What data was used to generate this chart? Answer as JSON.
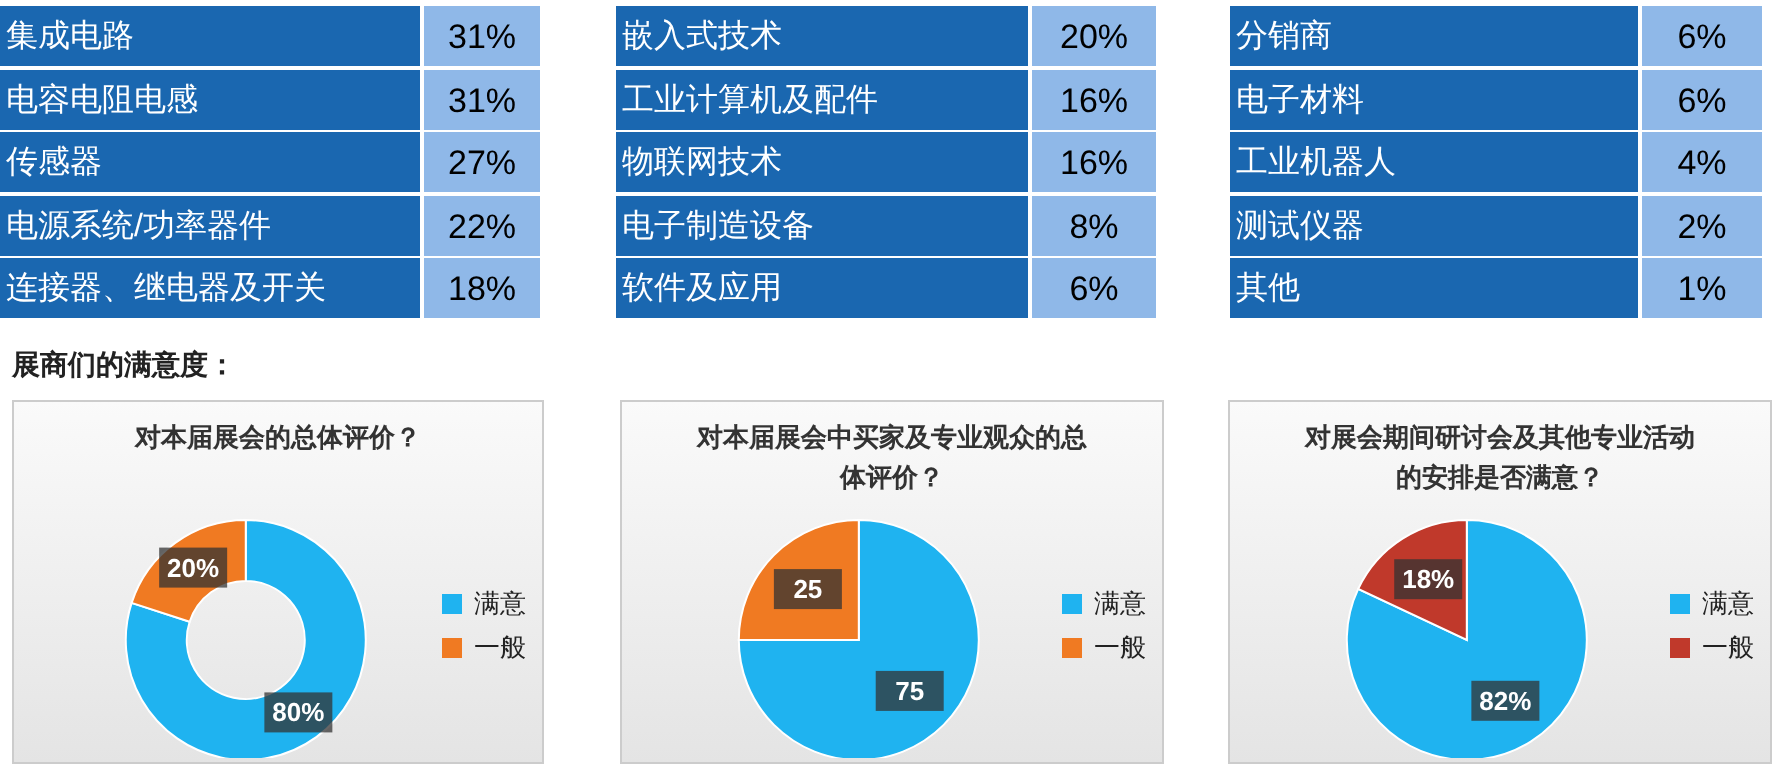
{
  "chart_data": [
    {
      "type": "other",
      "categories": [
        "集成电路",
        "电容电阻电感",
        "传感器",
        "电源系统/功率器件",
        "连接器、继电器及开关"
      ],
      "value_labels": [
        "31%",
        "31%",
        "27%",
        "22%",
        "18%"
      ]
    },
    {
      "type": "other",
      "categories": [
        "嵌入式技术",
        "工业计算机及配件",
        "物联网技术",
        "电子制造设备",
        "软件及应用"
      ],
      "value_labels": [
        "20%",
        "16%",
        "16%",
        "8%",
        "6%"
      ]
    },
    {
      "type": "other",
      "categories": [
        "分销商",
        "电子材料",
        "工业机器人",
        "测试仪器",
        "其他"
      ],
      "value_labels": [
        "6%",
        "6%",
        "4%",
        "2%",
        "1%"
      ]
    },
    {
      "type": "other",
      "title": "展商们的满意度："
    },
    {
      "type": "donut",
      "title": "对本届展会的总体评价？",
      "categories": [
        "满意",
        "一般"
      ],
      "values": [
        80,
        20
      ],
      "colors": [
        "#1fb3f0",
        "#f07a22"
      ],
      "value_labels": [
        "80%",
        "20%"
      ],
      "legend": "right"
    },
    {
      "type": "pie",
      "title": "对本届展会中买家及专业观众的总体评价？",
      "categories": [
        "满意",
        "一般"
      ],
      "values": [
        75,
        25
      ],
      "colors": [
        "#1fb3f0",
        "#f07a22"
      ],
      "data_labels": true,
      "legend": "right"
    },
    {
      "type": "pie",
      "title": "对展会期间研讨会及其他专业活动的安排是否满意？",
      "categories": [
        "满意",
        "一般"
      ],
      "values": [
        82,
        18
      ],
      "colors": [
        "#1fb3f0",
        "#c0392b"
      ],
      "value_labels": [
        "82%",
        "18%"
      ],
      "legend": "right"
    }
  ]
}
